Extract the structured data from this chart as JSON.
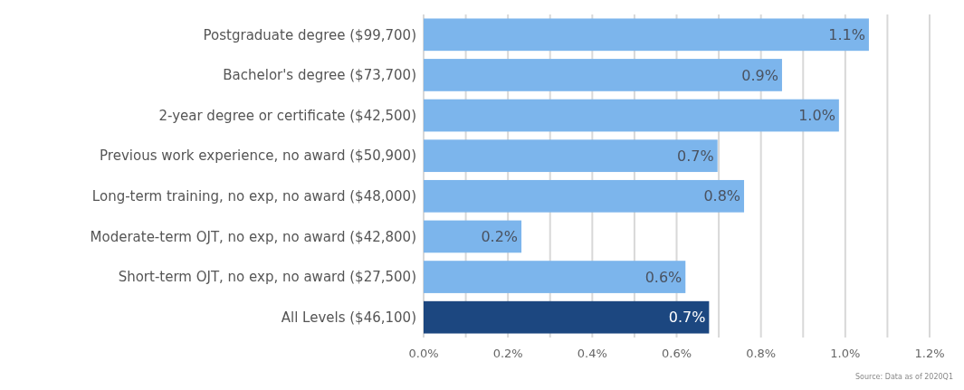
{
  "chart_data": {
    "type": "bar",
    "orientation": "horizontal",
    "categories": [
      "Postgraduate degree ($99,700)",
      "Bachelor's degree ($73,700)",
      "2-year degree or certificate ($42,500)",
      "Previous work experience, no award ($50,900)",
      "Long-term training, no exp, no award ($48,000)",
      "Moderate-term OJT, no exp, no award ($42,800)",
      "Short-term OJT, no exp, no award ($27,500)",
      "All Levels ($46,100)"
    ],
    "values": [
      1.056,
      0.85,
      0.985,
      0.697,
      0.76,
      0.232,
      0.621,
      0.677
    ],
    "value_labels": [
      "1.1%",
      "0.9%",
      "1.0%",
      "0.7%",
      "0.8%",
      "0.2%",
      "0.6%",
      "0.7%"
    ],
    "colors": [
      "#7cb5ec",
      "#7cb5ec",
      "#7cb5ec",
      "#7cb5ec",
      "#7cb5ec",
      "#7cb5ec",
      "#7cb5ec",
      "#1c4780"
    ],
    "xlim": [
      0,
      1.2
    ],
    "xticks": [
      {
        "value": 0,
        "label": "0.0%"
      },
      {
        "value": 0.1,
        "label": null
      },
      {
        "value": 0.2,
        "label": "0.2%"
      },
      {
        "value": 0.3,
        "label": null
      },
      {
        "value": 0.4,
        "label": "0.4%"
      },
      {
        "value": 0.5,
        "label": null
      },
      {
        "value": 0.6,
        "label": "0.6%"
      },
      {
        "value": 0.7,
        "label": null
      },
      {
        "value": 0.8,
        "label": "0.8%"
      },
      {
        "value": 0.9,
        "label": null
      },
      {
        "value": 1.0,
        "label": "1.0%"
      },
      {
        "value": 1.1,
        "label": null
      },
      {
        "value": 1.2,
        "label": "1.2%"
      }
    ],
    "grid": "x",
    "annotations": [
      "Source: Data as of 2020Q1"
    ]
  }
}
